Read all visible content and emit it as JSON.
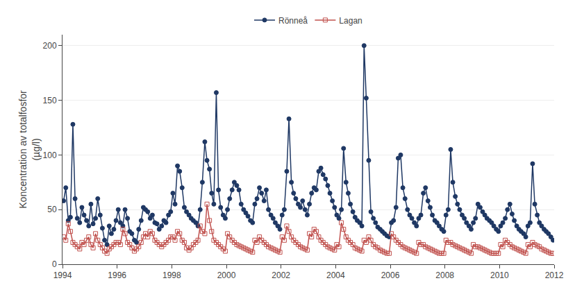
{
  "chart_data": {
    "type": "line",
    "ylabel": "Koncentration av totalfosfor\n(µg/l)",
    "xlim": [
      1994,
      2012
    ],
    "ylim": [
      0,
      210
    ],
    "xticks": [
      1994,
      1996,
      1998,
      2000,
      2002,
      2004,
      2006,
      2008,
      2010,
      2012
    ],
    "yticks": [
      0,
      50,
      100,
      150,
      200
    ],
    "grid": "y",
    "legend": "top",
    "x": [
      1994.04,
      1994.12,
      1994.21,
      1994.29,
      1994.38,
      1994.46,
      1994.54,
      1994.63,
      1994.71,
      1994.79,
      1994.88,
      1994.96,
      1995.04,
      1995.12,
      1995.21,
      1995.29,
      1995.38,
      1995.46,
      1995.54,
      1995.63,
      1995.71,
      1995.79,
      1995.88,
      1995.96,
      1996.04,
      1996.12,
      1996.21,
      1996.29,
      1996.38,
      1996.46,
      1996.54,
      1996.63,
      1996.71,
      1996.79,
      1996.88,
      1996.96,
      1997.04,
      1997.12,
      1997.21,
      1997.29,
      1997.38,
      1997.46,
      1997.54,
      1997.63,
      1997.71,
      1997.79,
      1997.88,
      1997.96,
      1998.04,
      1998.12,
      1998.21,
      1998.29,
      1998.38,
      1998.46,
      1998.54,
      1998.63,
      1998.71,
      1998.79,
      1998.88,
      1998.96,
      1999.04,
      1999.12,
      1999.21,
      1999.29,
      1999.38,
      1999.46,
      1999.54,
      1999.63,
      1999.71,
      1999.79,
      1999.88,
      1999.96,
      2000.04,
      2000.12,
      2000.21,
      2000.29,
      2000.38,
      2000.46,
      2000.54,
      2000.63,
      2000.71,
      2000.79,
      2000.88,
      2000.96,
      2001.04,
      2001.12,
      2001.21,
      2001.29,
      2001.38,
      2001.46,
      2001.54,
      2001.63,
      2001.71,
      2001.79,
      2001.88,
      2001.96,
      2002.04,
      2002.12,
      2002.21,
      2002.29,
      2002.38,
      2002.46,
      2002.54,
      2002.63,
      2002.71,
      2002.79,
      2002.88,
      2002.96,
      2003.04,
      2003.12,
      2003.21,
      2003.29,
      2003.38,
      2003.46,
      2003.54,
      2003.63,
      2003.71,
      2003.79,
      2003.88,
      2003.96,
      2004.04,
      2004.12,
      2004.21,
      2004.29,
      2004.38,
      2004.46,
      2004.54,
      2004.63,
      2004.71,
      2004.79,
      2004.88,
      2004.96,
      2005.04,
      2005.12,
      2005.21,
      2005.29,
      2005.38,
      2005.46,
      2005.54,
      2005.63,
      2005.71,
      2005.79,
      2005.88,
      2005.96,
      2006.04,
      2006.12,
      2006.21,
      2006.29,
      2006.38,
      2006.46,
      2006.54,
      2006.63,
      2006.71,
      2006.79,
      2006.88,
      2006.96,
      2007.04,
      2007.12,
      2007.21,
      2007.29,
      2007.38,
      2007.46,
      2007.54,
      2007.63,
      2007.71,
      2007.79,
      2007.88,
      2007.96,
      2008.04,
      2008.12,
      2008.21,
      2008.29,
      2008.38,
      2008.46,
      2008.54,
      2008.63,
      2008.71,
      2008.79,
      2008.88,
      2008.96,
      2009.04,
      2009.12,
      2009.21,
      2009.29,
      2009.38,
      2009.46,
      2009.54,
      2009.63,
      2009.71,
      2009.79,
      2009.88,
      2009.96,
      2010.04,
      2010.12,
      2010.21,
      2010.29,
      2010.38,
      2010.46,
      2010.54,
      2010.63,
      2010.71,
      2010.79,
      2010.88,
      2010.96,
      2011.04,
      2011.12,
      2011.21,
      2011.29,
      2011.38,
      2011.46,
      2011.54,
      2011.63,
      2011.71,
      2011.79,
      2011.88,
      2011.96
    ],
    "series": [
      {
        "name": "Rönneå",
        "color": "#1F3864",
        "marker": "circle",
        "line_style": "solid",
        "values": [
          58,
          70,
          40,
          43,
          128,
          60,
          42,
          38,
          52,
          45,
          40,
          35,
          55,
          37,
          42,
          60,
          45,
          33,
          22,
          18,
          35,
          28,
          32,
          40,
          50,
          38,
          35,
          50,
          42,
          30,
          28,
          22,
          20,
          32,
          40,
          52,
          50,
          48,
          42,
          45,
          38,
          37,
          32,
          35,
          40,
          38,
          45,
          48,
          65,
          55,
          90,
          85,
          70,
          52,
          48,
          45,
          42,
          40,
          38,
          35,
          50,
          75,
          112,
          95,
          87,
          65,
          55,
          157,
          68,
          52,
          45,
          42,
          50,
          60,
          68,
          75,
          72,
          68,
          55,
          50,
          47,
          44,
          40,
          38,
          55,
          60,
          70,
          65,
          58,
          68,
          50,
          45,
          42,
          38,
          35,
          32,
          45,
          50,
          85,
          133,
          75,
          65,
          60,
          55,
          52,
          58,
          50,
          45,
          55,
          65,
          70,
          68,
          85,
          88,
          82,
          78,
          72,
          65,
          58,
          52,
          45,
          42,
          50,
          106,
          75,
          65,
          55,
          48,
          43,
          40,
          38,
          35,
          200,
          152,
          95,
          48,
          42,
          38,
          34,
          32,
          30,
          28,
          26,
          25,
          38,
          40,
          52,
          97,
          100,
          70,
          60,
          50,
          45,
          42,
          38,
          35,
          42,
          45,
          65,
          70,
          58,
          52,
          45,
          40,
          38,
          35,
          32,
          30,
          45,
          50,
          105,
          75,
          62,
          55,
          50,
          45,
          42,
          38,
          35,
          32,
          38,
          42,
          55,
          52,
          48,
          45,
          42,
          40,
          38,
          35,
          32,
          30,
          35,
          38,
          42,
          50,
          55,
          46,
          40,
          35,
          32,
          30,
          28,
          25,
          35,
          38,
          92,
          55,
          45,
          38,
          35,
          32,
          30,
          28,
          25,
          22
        ]
      },
      {
        "name": "Lagan",
        "color": "#C0504D",
        "marker": "square-open",
        "line_style": "solid",
        "values": [
          25,
          22,
          37,
          30,
          20,
          18,
          16,
          14,
          20,
          18,
          22,
          25,
          18,
          15,
          28,
          22,
          18,
          15,
          12,
          10,
          14,
          16,
          18,
          20,
          20,
          18,
          32,
          28,
          20,
          18,
          15,
          12,
          14,
          16,
          20,
          25,
          28,
          25,
          30,
          28,
          22,
          20,
          18,
          16,
          18,
          20,
          22,
          25,
          25,
          22,
          30,
          28,
          22,
          20,
          15,
          13,
          15,
          18,
          20,
          22,
          35,
          30,
          28,
          55,
          40,
          30,
          22,
          20,
          18,
          16,
          14,
          12,
          28,
          25,
          22,
          20,
          18,
          17,
          16,
          15,
          14,
          13,
          12,
          11,
          22,
          20,
          25,
          22,
          20,
          18,
          16,
          15,
          14,
          13,
          12,
          11,
          25,
          22,
          35,
          30,
          25,
          22,
          20,
          18,
          16,
          15,
          14,
          13,
          28,
          25,
          32,
          30,
          25,
          22,
          20,
          18,
          16,
          15,
          14,
          13,
          18,
          16,
          38,
          32,
          25,
          22,
          20,
          18,
          15,
          14,
          13,
          12,
          22,
          20,
          25,
          22,
          18,
          16,
          15,
          13,
          12,
          11,
          10,
          10,
          28,
          25,
          22,
          20,
          18,
          16,
          15,
          14,
          13,
          12,
          11,
          10,
          20,
          18,
          18,
          16,
          15,
          14,
          13,
          12,
          11,
          10,
          10,
          10,
          22,
          20,
          20,
          18,
          17,
          16,
          15,
          14,
          13,
          12,
          11,
          10,
          18,
          16,
          16,
          15,
          14,
          13,
          12,
          11,
          10,
          10,
          10,
          10,
          18,
          16,
          22,
          20,
          18,
          16,
          15,
          14,
          13,
          12,
          11,
          10,
          18,
          16,
          20,
          18,
          17,
          16,
          14,
          13,
          12,
          11,
          10,
          10
        ]
      }
    ]
  }
}
